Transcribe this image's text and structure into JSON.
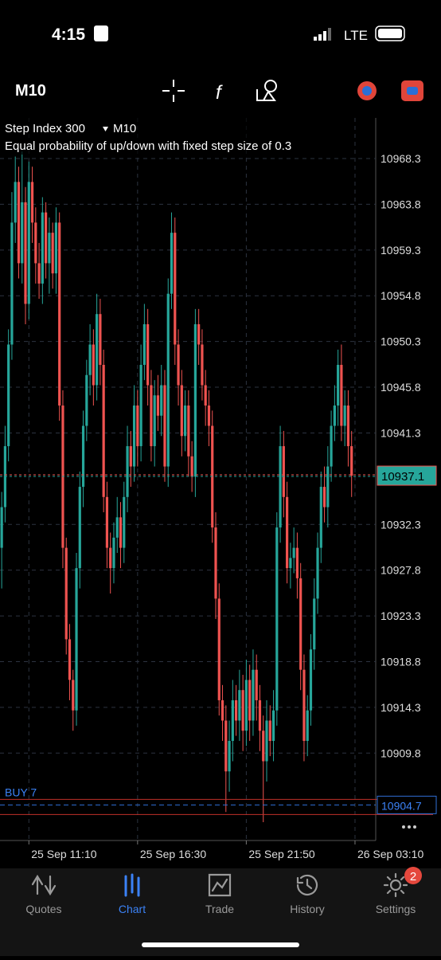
{
  "status_bar": {
    "time": "4:15",
    "network": "LTE"
  },
  "toolbar": {
    "timeframe": "M10"
  },
  "chart_data": {
    "type": "candlestick",
    "title": "Step Index 300",
    "timeframe": "M10",
    "subtitle": "Equal probability of up/down with fixed step size of 0.3",
    "x": [
      0,
      1,
      2,
      3,
      4,
      5,
      6,
      7,
      8,
      9,
      10,
      11,
      12,
      13,
      14,
      15,
      16,
      17,
      18,
      19,
      20,
      21,
      22,
      23,
      24,
      25,
      26,
      27,
      28,
      29,
      30,
      31,
      32,
      33,
      34,
      35,
      36,
      37,
      38,
      39,
      40,
      41,
      42,
      43,
      44,
      45,
      46,
      47,
      48,
      49,
      50,
      51,
      52,
      53,
      54,
      55,
      56,
      57,
      58,
      59,
      60,
      61,
      62,
      63,
      64,
      65,
      66,
      67,
      68,
      69,
      70,
      71,
      72,
      73,
      74,
      75,
      76,
      77,
      78,
      79,
      80,
      81,
      82,
      83,
      84,
      85,
      86,
      87,
      88,
      89,
      90,
      91,
      92,
      93,
      94,
      95,
      96,
      97,
      98,
      99,
      100,
      101,
      102,
      103
    ],
    "open": [
      10930,
      10934,
      10940,
      10950,
      10962,
      10966,
      10958,
      10964,
      10954,
      10966,
      10962,
      10958,
      10956,
      10963,
      10958,
      10961,
      10957,
      10962,
      10944,
      10930,
      10921,
      10917,
      10914,
      10928,
      10936,
      10942,
      10947,
      10950,
      10946,
      10953,
      10948,
      10935,
      10930,
      10928,
      10931,
      10933,
      10930,
      10935,
      10940,
      10938,
      10944,
      10940,
      10948,
      10952,
      10946,
      10940,
      10945,
      10943,
      10946,
      10938,
      10955,
      10961,
      10950,
      10946,
      10941,
      10944,
      10939,
      10937,
      10952,
      10950,
      10946,
      10944,
      10942,
      10932,
      10925,
      10915,
      10913,
      10908,
      10911,
      10915,
      10913,
      10916,
      10912,
      10917,
      10913,
      10918,
      10915,
      10912,
      10909,
      10913,
      10911,
      10914,
      10932,
      10940,
      10935,
      10928,
      10929,
      10930,
      10927,
      10918,
      10911,
      10914,
      10920,
      10925,
      10930,
      10936,
      10934,
      10938,
      10942,
      10944,
      10948,
      10942,
      10944,
      10940
    ],
    "high": [
      10935.5,
      10942,
      10951.5,
      10965,
      10968.5,
      10967.5,
      10969,
      10965.5,
      10968,
      10967.5,
      10963.5,
      10960,
      10964.5,
      10964,
      10962.5,
      10962,
      10963.5,
      10963,
      10945.5,
      10931,
      10922.5,
      10918,
      10929.5,
      10937.5,
      10943.5,
      10948.5,
      10952,
      10951.5,
      10955,
      10954.5,
      10949.5,
      10936.5,
      10931.5,
      10932.5,
      10935,
      10934.5,
      10936.5,
      10942,
      10941.5,
      10946,
      10945.5,
      10950,
      10954,
      10953.5,
      10947.5,
      10946.5,
      10947,
      10948,
      10947.5,
      10956.5,
      10963,
      10962.5,
      10951.5,
      10947.5,
      10945.5,
      10945.5,
      10940.5,
      10953.5,
      10953.5,
      10951.5,
      10947.5,
      10945.5,
      10943.5,
      10933.5,
      10926.5,
      10916.5,
      10914.5,
      10913,
      10917,
      10916.5,
      10918,
      10917.5,
      10919,
      10918.5,
      10920,
      10919.5,
      10916.5,
      10913.5,
      10915,
      10914.5,
      10916,
      10933.5,
      10942,
      10941.5,
      10936.5,
      10930.5,
      10932,
      10931.5,
      10928.5,
      10919.5,
      10915.5,
      10921.5,
      10927,
      10931.5,
      10937.5,
      10938,
      10940,
      10943.5,
      10946,
      10949.5,
      10950,
      10945.5,
      10945.5,
      10941.5
    ],
    "low": [
      10926,
      10932.5,
      10938.5,
      10948.5,
      10960,
      10956.5,
      10956,
      10952,
      10952.5,
      10960,
      10956,
      10954.5,
      10954,
      10956.5,
      10955,
      10955.5,
      10955,
      10942.5,
      10928,
      10919.5,
      10915,
      10912,
      10912.5,
      10926,
      10934,
      10940.5,
      10945,
      10944,
      10944.5,
      10946,
      10933.5,
      10928,
      10925.5,
      10926.5,
      10929.5,
      10928,
      10928.5,
      10933.5,
      10936,
      10936.5,
      10938,
      10938.5,
      10946.5,
      10944,
      10938.5,
      10938,
      10941.5,
      10941,
      10936.5,
      10936,
      10953.5,
      10948,
      10944,
      10939,
      10939.5,
      10937,
      10935.5,
      10935,
      10948,
      10944.5,
      10942,
      10940,
      10930.5,
      10923,
      10913.5,
      10911,
      10904,
      10906,
      10909,
      10911.5,
      10911,
      10910,
      10910.5,
      10911,
      10911.5,
      10913,
      10910,
      10903,
      10907,
      10909.5,
      10909,
      10912.5,
      10930.5,
      10933,
      10926.5,
      10926,
      10927.5,
      10925,
      10916,
      10909,
      10909.5,
      10912.5,
      10918,
      10923.5,
      10928.5,
      10932.5,
      10932,
      10936.5,
      10940.5,
      10942,
      10940.5,
      10940,
      10938,
      10935
    ],
    "close": [
      10934,
      10940,
      10950,
      10962,
      10966,
      10958,
      10964,
      10954,
      10966,
      10962,
      10958,
      10956,
      10963,
      10958,
      10961,
      10957,
      10962,
      10944,
      10930,
      10921,
      10917,
      10914,
      10928,
      10936,
      10942,
      10947,
      10950,
      10946,
      10953,
      10948,
      10935,
      10930,
      10928,
      10931,
      10933,
      10930,
      10935,
      10940,
      10938,
      10944,
      10940,
      10948,
      10952,
      10946,
      10940,
      10945,
      10943,
      10946,
      10938,
      10955,
      10961,
      10950,
      10946,
      10941,
      10944,
      10939,
      10937,
      10952,
      10950,
      10946,
      10944,
      10942,
      10932,
      10925,
      10915,
      10913,
      10908,
      10911,
      10915,
      10913,
      10916,
      10912,
      10917,
      10913,
      10918,
      10915,
      10912,
      10909,
      10913,
      10911,
      10914,
      10932,
      10940,
      10935,
      10928,
      10929,
      10930,
      10927,
      10918,
      10911,
      10914,
      10920,
      10925,
      10930,
      10936,
      10934,
      10938,
      10942,
      10944,
      10948,
      10942,
      10944,
      10940,
      10937.1
    ],
    "up_color": "#26a69a",
    "down_color": "#ef5350",
    "xlim": [
      -0.5,
      110.1
    ],
    "xticks": [
      {
        "value": 8,
        "label": "25 Sep 11:10"
      },
      {
        "value": 40,
        "label": "25 Sep 16:30"
      },
      {
        "value": 72,
        "label": "25 Sep 21:50"
      },
      {
        "value": 104,
        "label": "26 Sep 03:10"
      }
    ],
    "ylim": [
      10901.2,
      10972.3
    ],
    "yticks": [
      10968.3,
      10963.8,
      10959.3,
      10954.8,
      10950.3,
      10945.8,
      10941.3,
      10932.3,
      10927.8,
      10923.3,
      10918.8,
      10914.3,
      10909.8
    ],
    "grid": true,
    "current_price": 10937.1,
    "order": {
      "label": "BUY 7",
      "price": 10904.7
    }
  },
  "tab_bar": {
    "tabs": [
      "Quotes",
      "Chart",
      "Trade",
      "History",
      "Settings"
    ],
    "active": 1,
    "settings_badge": 2
  }
}
